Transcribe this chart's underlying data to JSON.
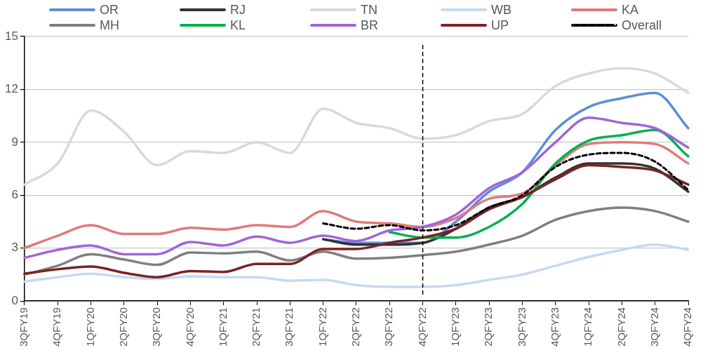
{
  "chart_data": {
    "type": "line",
    "categories": [
      "3QFY19",
      "4QFY19",
      "1QFY20",
      "2QFY20",
      "3QFY20",
      "4QFY20",
      "1QFY21",
      "2QFY21",
      "3QFY21",
      "1QFY22",
      "2QFY22",
      "3QFY22",
      "4QFY22",
      "1QFY23",
      "2QFY23",
      "3QFY23",
      "4QFY23",
      "1QFY24",
      "2QFY24",
      "3QFY24",
      "4QFY24"
    ],
    "series": [
      {
        "name": "OR",
        "color": "#5b8fd6",
        "values": [
          null,
          null,
          null,
          null,
          null,
          null,
          null,
          null,
          null,
          3.5,
          3.3,
          3.3,
          3.3,
          4.5,
          6.2,
          7.3,
          9.7,
          11.0,
          11.5,
          11.8,
          9.8
        ]
      },
      {
        "name": "RJ",
        "color": "#333333",
        "values": [
          null,
          null,
          null,
          null,
          null,
          null,
          null,
          null,
          null,
          3.5,
          3.2,
          3.2,
          3.3,
          4.1,
          5.3,
          5.9,
          7.0,
          7.8,
          7.8,
          7.5,
          6.2
        ]
      },
      {
        "name": "TN",
        "color": "#d9d9d9",
        "values": [
          6.6,
          7.8,
          10.8,
          9.6,
          7.7,
          8.5,
          8.4,
          9.0,
          8.4,
          10.9,
          10.1,
          9.8,
          9.2,
          9.4,
          10.2,
          10.6,
          12.2,
          12.9,
          13.2,
          12.9,
          11.8
        ]
      },
      {
        "name": "WB",
        "color": "#c6d9f0",
        "values": [
          1.1,
          1.35,
          1.55,
          1.35,
          1.25,
          1.4,
          1.35,
          1.35,
          1.15,
          1.2,
          0.9,
          0.8,
          0.8,
          0.9,
          1.2,
          1.5,
          2.0,
          2.5,
          2.9,
          3.2,
          2.9
        ]
      },
      {
        "name": "KA",
        "color": "#e07b7b",
        "values": [
          3.0,
          3.7,
          4.3,
          3.8,
          3.8,
          4.15,
          4.05,
          4.3,
          4.2,
          5.1,
          4.5,
          4.4,
          4.2,
          4.7,
          5.8,
          6.1,
          7.7,
          8.9,
          9.0,
          8.9,
          7.8
        ]
      },
      {
        "name": "MH",
        "color": "#7f7f7f",
        "values": [
          1.5,
          2.0,
          2.65,
          2.35,
          2.05,
          2.75,
          2.7,
          2.8,
          2.3,
          2.8,
          2.4,
          2.45,
          2.6,
          2.8,
          3.2,
          3.7,
          4.6,
          5.1,
          5.3,
          5.1,
          4.5
        ]
      },
      {
        "name": "KL",
        "color": "#00b050",
        "values": [
          null,
          null,
          null,
          null,
          null,
          null,
          null,
          null,
          null,
          null,
          null,
          3.9,
          3.6,
          3.6,
          4.2,
          5.5,
          7.8,
          9.1,
          9.4,
          9.7,
          8.2
        ]
      },
      {
        "name": "BR",
        "color": "#a065d8",
        "values": [
          2.45,
          2.9,
          3.15,
          2.65,
          2.65,
          3.35,
          3.15,
          3.65,
          3.3,
          3.7,
          3.4,
          4.0,
          4.2,
          4.9,
          6.4,
          7.3,
          9.0,
          10.4,
          10.1,
          9.8,
          8.7
        ]
      },
      {
        "name": "UP",
        "color": "#7b2326",
        "values": [
          1.55,
          1.8,
          1.95,
          1.6,
          1.35,
          1.7,
          1.65,
          2.1,
          2.1,
          2.95,
          2.95,
          3.3,
          3.6,
          4.1,
          5.2,
          5.9,
          6.9,
          7.7,
          7.6,
          7.4,
          6.6
        ]
      },
      {
        "name": "Overall",
        "color": "#000000",
        "line_style": "dashed",
        "values": [
          null,
          null,
          null,
          null,
          null,
          null,
          null,
          null,
          null,
          4.4,
          4.1,
          4.3,
          4.0,
          4.3,
          5.3,
          6.0,
          7.6,
          8.3,
          8.4,
          7.9,
          6.3
        ]
      }
    ],
    "ylim": [
      0,
      15
    ],
    "yticks": [
      0,
      3,
      6,
      9,
      12,
      15
    ],
    "grid": "y",
    "legend": "top",
    "marker": "none",
    "ref_lines": [
      {
        "axis": "x",
        "value": "4QFY22",
        "color": "#000000",
        "line_style": "dashed"
      }
    ]
  }
}
